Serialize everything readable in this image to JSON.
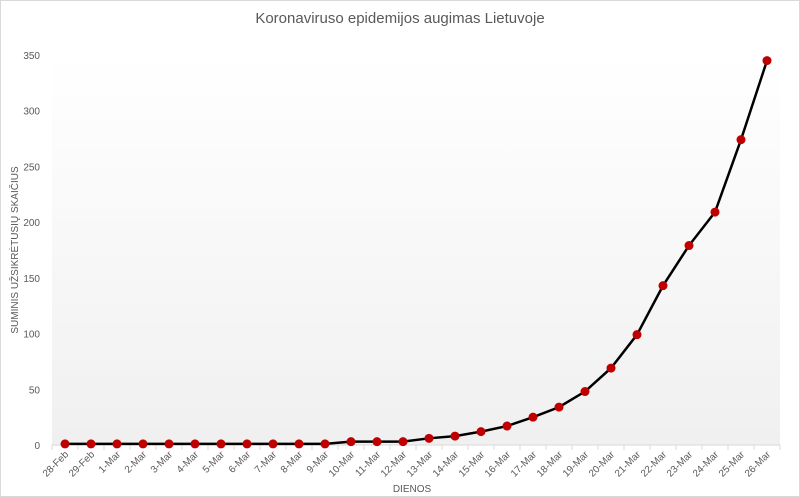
{
  "chart_data": {
    "type": "line",
    "title": "Koronaviruso epidemijos augimas Lietuvoje",
    "xlabel": "DIENOS",
    "ylabel": "SUMINIS UŽSIKRĖTUSIŲ SKAIČIUS",
    "ylim": [
      0,
      350
    ],
    "yticks": [
      0,
      50,
      100,
      150,
      200,
      250,
      300,
      350
    ],
    "grid": false,
    "legend": null,
    "categories": [
      "28-Feb",
      "29-Feb",
      "1-Mar",
      "2-Mar",
      "3-Mar",
      "4-Mar",
      "5-Mar",
      "6-Mar",
      "7-Mar",
      "8-Mar",
      "9-Mar",
      "10-Mar",
      "11-Mar",
      "12-Mar",
      "13-Mar",
      "14-Mar",
      "15-Mar",
      "16-Mar",
      "17-Mar",
      "18-Mar",
      "19-Mar",
      "20-Mar",
      "21-Mar",
      "22-Mar",
      "23-Mar",
      "24-Mar",
      "25-Mar",
      "26-Mar"
    ],
    "series": [
      {
        "name": "Suminis užsikrėtusių skaičius",
        "line_color": "#000000",
        "marker_color": "#c00000",
        "values": [
          1,
          1,
          1,
          1,
          1,
          1,
          1,
          1,
          1,
          1,
          1,
          3,
          3,
          3,
          6,
          8,
          12,
          17,
          25,
          34,
          48,
          69,
          99,
          143,
          179,
          209,
          274,
          345
        ]
      }
    ]
  }
}
